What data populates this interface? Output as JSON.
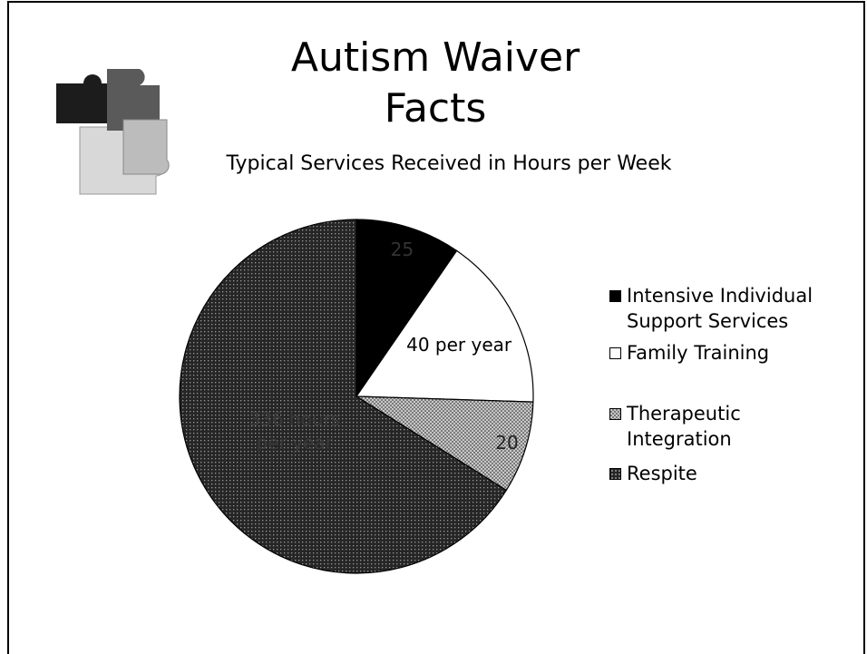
{
  "title": "Autism Waiver Facts",
  "chart_data": {
    "type": "pie",
    "title": "Typical Services Received in Hours per Week",
    "categories": [
      "Intensive Individual Support Services",
      "Family Training",
      "Therapeutic Integration",
      "Respite"
    ],
    "values": [
      9.6,
      15.9,
      8.4,
      66.1
    ],
    "colors": [
      "#000000",
      "#ffffff",
      "#a8a8a8",
      "#262626"
    ],
    "patterns": [
      "solid",
      "solid",
      "checker",
      "dots"
    ],
    "slice_labels": [
      "25",
      "40 per year",
      "20",
      "336 hours per year"
    ],
    "legend": "right"
  }
}
